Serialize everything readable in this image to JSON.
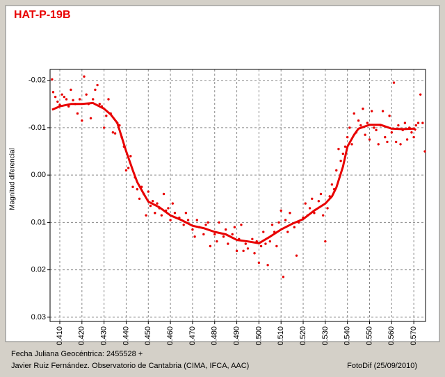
{
  "chart_data": {
    "type": "scatter",
    "title": "HAT-P-19B",
    "y_label": "Magnitud diferencial",
    "x_label": "Fecha Juliana Geocéntrica: 2455528 +",
    "credit": "Javier Ruiz Fernández. Observatorio de Cantabria (CIMA, IFCA, AAC)",
    "software": "FotoDif (25/09/2010)",
    "grid": true,
    "xlim": [
      0.4056,
      0.5753
    ],
    "ylim": [
      0.0309,
      -0.0223
    ],
    "xticks": [
      {
        "value": 0.41,
        "label": "0.410"
      },
      {
        "value": 0.42,
        "label": "0.420"
      },
      {
        "value": 0.43,
        "label": "0.430"
      },
      {
        "value": 0.44,
        "label": "0.440"
      },
      {
        "value": 0.45,
        "label": "0.450"
      },
      {
        "value": 0.46,
        "label": "0.460"
      },
      {
        "value": 0.47,
        "label": "0.470"
      },
      {
        "value": 0.48,
        "label": "0.480"
      },
      {
        "value": 0.49,
        "label": "0.490"
      },
      {
        "value": 0.5,
        "label": "0.500"
      },
      {
        "value": 0.51,
        "label": "0.510"
      },
      {
        "value": 0.52,
        "label": "0.520"
      },
      {
        "value": 0.53,
        "label": "0.530"
      },
      {
        "value": 0.54,
        "label": "0.540"
      },
      {
        "value": 0.55,
        "label": "0.550"
      },
      {
        "value": 0.56,
        "label": "0.560"
      },
      {
        "value": 0.57,
        "label": "0.570"
      }
    ],
    "yticks": [
      -0.02,
      -0.01,
      {
        "value": 0,
        "label": "0.00"
      },
      0.01,
      0.02,
      0.03
    ],
    "series": [
      {
        "mode": "markers",
        "color": "#e80000",
        "x": [
          0.4065,
          0.407,
          0.408,
          0.409,
          0.41,
          0.411,
          0.412,
          0.413,
          0.414,
          0.415,
          0.416,
          0.417,
          0.418,
          0.419,
          0.42,
          0.421,
          0.422,
          0.423,
          0.424,
          0.425,
          0.426,
          0.427,
          0.428,
          0.429,
          0.43,
          0.431,
          0.432,
          0.433,
          0.434,
          0.435,
          0.436,
          0.437,
          0.438,
          0.439,
          0.44,
          0.441,
          0.442,
          0.443,
          0.444,
          0.445,
          0.446,
          0.447,
          0.448,
          0.449,
          0.45,
          0.451,
          0.452,
          0.453,
          0.454,
          0.455,
          0.456,
          0.457,
          0.458,
          0.459,
          0.46,
          0.461,
          0.462,
          0.464,
          0.466,
          0.467,
          0.468,
          0.47,
          0.471,
          0.472,
          0.473,
          0.475,
          0.476,
          0.477,
          0.478,
          0.48,
          0.481,
          0.482,
          0.484,
          0.485,
          0.486,
          0.488,
          0.489,
          0.49,
          0.491,
          0.492,
          0.493,
          0.494,
          0.495,
          0.497,
          0.498,
          0.499,
          0.5,
          0.501,
          0.502,
          0.503,
          0.504,
          0.505,
          0.506,
          0.507,
          0.508,
          0.509,
          0.51,
          0.511,
          0.512,
          0.513,
          0.514,
          0.516,
          0.517,
          0.518,
          0.52,
          0.521,
          0.522,
          0.523,
          0.524,
          0.525,
          0.527,
          0.528,
          0.529,
          0.53,
          0.531,
          0.532,
          0.533,
          0.534,
          0.535,
          0.536,
          0.537,
          0.538,
          0.539,
          0.54,
          0.541,
          0.542,
          0.543,
          0.544,
          0.545,
          0.546,
          0.547,
          0.548,
          0.549,
          0.55,
          0.551,
          0.552,
          0.553,
          0.554,
          0.555,
          0.556,
          0.557,
          0.558,
          0.559,
          0.56,
          0.561,
          0.562,
          0.563,
          0.564,
          0.565,
          0.566,
          0.567,
          0.568,
          0.569,
          0.57,
          0.571,
          0.572,
          0.573,
          0.574,
          0.575
        ],
        "values": [
          -0.0202,
          -0.0175,
          -0.0165,
          -0.0155,
          -0.0148,
          -0.017,
          -0.0165,
          -0.016,
          -0.0145,
          -0.018,
          -0.0158,
          -0.015,
          -0.013,
          -0.016,
          -0.0115,
          -0.0208,
          -0.017,
          -0.015,
          -0.012,
          -0.016,
          -0.018,
          -0.019,
          -0.015,
          -0.0145,
          -0.01,
          -0.0125,
          -0.016,
          -0.013,
          -0.009,
          -0.0088,
          -0.011,
          -0.0105,
          -0.008,
          -0.006,
          -0.001,
          -0.0015,
          -0.004,
          0.0025,
          0.0005,
          0.003,
          0.005,
          0.0025,
          0.004,
          0.0085,
          0.0035,
          0.0065,
          0.0055,
          0.008,
          0.006,
          0.007,
          0.0085,
          0.004,
          0.0075,
          0.007,
          0.0095,
          0.006,
          0.008,
          0.009,
          0.0105,
          0.008,
          0.0095,
          0.0115,
          0.013,
          0.0095,
          0.011,
          0.0125,
          0.0105,
          0.01,
          0.015,
          0.0125,
          0.014,
          0.01,
          0.013,
          0.0115,
          0.0145,
          0.0125,
          0.011,
          0.016,
          0.0135,
          0.0105,
          0.016,
          0.0145,
          0.0155,
          0.0135,
          0.0165,
          0.014,
          0.0185,
          0.015,
          0.012,
          0.0145,
          0.019,
          0.014,
          0.0105,
          0.012,
          0.015,
          0.01,
          0.0075,
          0.0215,
          0.0095,
          0.012,
          0.008,
          0.011,
          0.017,
          0.01,
          0.009,
          0.006,
          0.0085,
          0.007,
          0.005,
          0.008,
          0.0055,
          0.004,
          0.0085,
          0.014,
          0.007,
          0.0045,
          0.002,
          0.003,
          -0.001,
          -0.0055,
          -0.003,
          -0.0045,
          -0.006,
          -0.008,
          -0.01,
          -0.0065,
          -0.013,
          -0.009,
          -0.0115,
          -0.0105,
          -0.014,
          -0.0085,
          -0.011,
          -0.0075,
          -0.0135,
          -0.01,
          -0.0095,
          -0.0065,
          -0.0105,
          -0.0135,
          -0.008,
          -0.007,
          -0.0125,
          -0.009,
          -0.0195,
          -0.007,
          -0.0105,
          -0.0065,
          -0.0095,
          -0.011,
          -0.0075,
          -0.01,
          -0.009,
          -0.008,
          -0.0105,
          -0.011,
          -0.017,
          -0.011,
          -0.005
        ]
      },
      {
        "mode": "line",
        "color": "#e80000",
        "x": [
          0.4065,
          0.41,
          0.415,
          0.42,
          0.425,
          0.43,
          0.433,
          0.436,
          0.438,
          0.44,
          0.443,
          0.445,
          0.448,
          0.45,
          0.455,
          0.46,
          0.465,
          0.47,
          0.475,
          0.48,
          0.485,
          0.49,
          0.495,
          0.5,
          0.505,
          0.51,
          0.515,
          0.52,
          0.525,
          0.53,
          0.533,
          0.535,
          0.538,
          0.54,
          0.543,
          0.545,
          0.55,
          0.555,
          0.56,
          0.565,
          0.57,
          0.571
        ],
        "values": [
          -0.0138,
          -0.0145,
          -0.015,
          -0.015,
          -0.0152,
          -0.014,
          -0.0128,
          -0.011,
          -0.008,
          -0.005,
          -0.001,
          0.0015,
          0.004,
          0.0056,
          0.0068,
          0.0085,
          0.0095,
          0.0107,
          0.0112,
          0.012,
          0.0125,
          0.0137,
          0.014,
          0.0144,
          0.013,
          0.0115,
          0.0103,
          0.0093,
          0.0075,
          0.006,
          0.0045,
          0.0026,
          -0.0018,
          -0.006,
          -0.0085,
          -0.0098,
          -0.0106,
          -0.0106,
          -0.0098,
          -0.0097,
          -0.0098,
          -0.0095
        ]
      }
    ]
  }
}
